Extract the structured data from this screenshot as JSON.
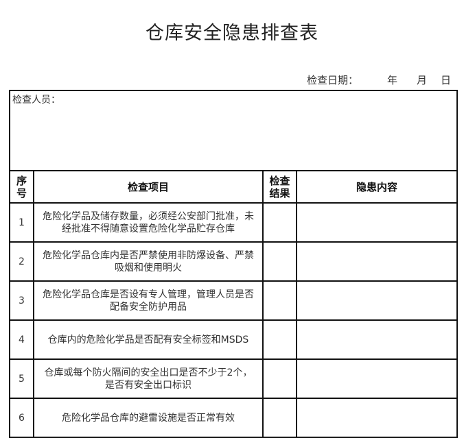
{
  "title": "仓库安全隐患排查表",
  "date": {
    "label": "检查日期：",
    "year": "年",
    "month": "月",
    "day": "日"
  },
  "inspector_label": "检查人员：",
  "headers": {
    "no": "序号",
    "item": "检查项目",
    "result": "检查结果",
    "hazard": "隐患内容"
  },
  "rows": [
    {
      "no": "1",
      "item": "危险化学品及储存数量，必须经公安部门批准，未经批准不得随意设置危险化学品贮存仓库"
    },
    {
      "no": "2",
      "item": "危险化学品仓库内是否严禁使用非防爆设备、严禁吸烟和使用明火"
    },
    {
      "no": "3",
      "item": "危险化学品仓库是否设有专人管理，管理人员是否配备安全防护用品"
    },
    {
      "no": "4",
      "item": "仓库内的危险化学品是否配有安全标签和MSDS"
    },
    {
      "no": "5",
      "item": "仓库或每个防火隔间的安全出口是否不少于2个，是否有安全出口标识"
    },
    {
      "no": "6",
      "item": "危险化学品仓库的避雷设施是否正常有效"
    }
  ]
}
